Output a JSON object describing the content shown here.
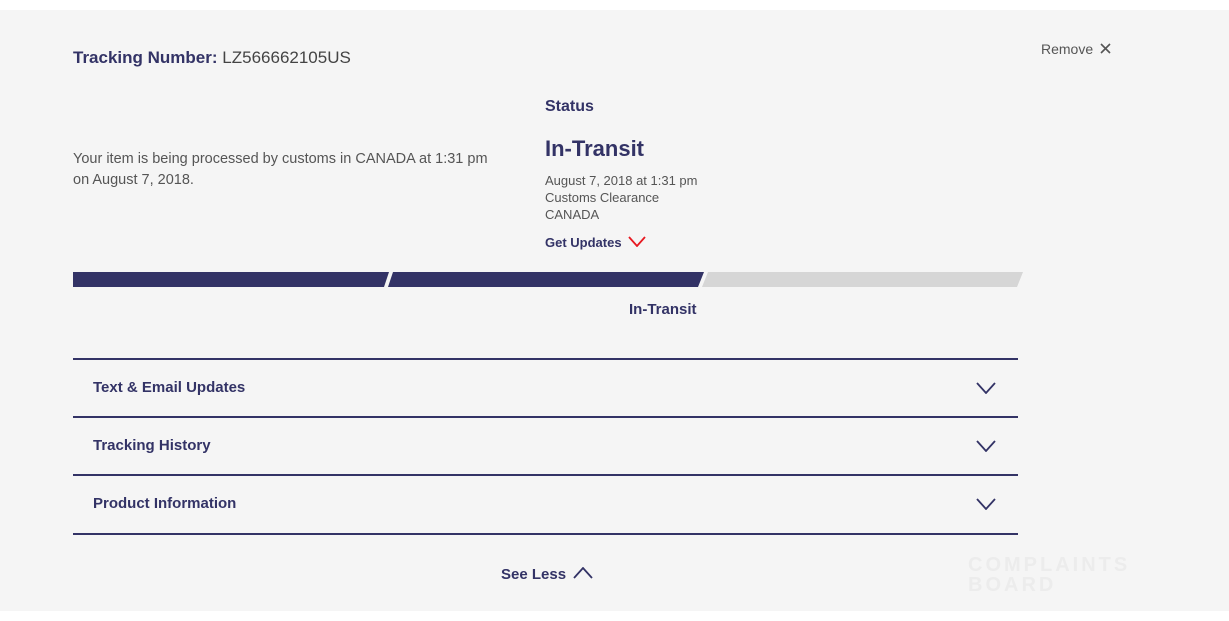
{
  "tracking": {
    "label": "Tracking Number:",
    "number": "LZ566662105US"
  },
  "remove_label": "Remove",
  "message": "Your item is being processed by customs in CANADA at 1:31 pm on August 7, 2018.",
  "status": {
    "heading": "Status",
    "value": "In-Transit",
    "datetime": "August 7, 2018 at 1:31 pm",
    "event": "Customs Clearance",
    "location": "CANADA",
    "get_updates": "Get Updates"
  },
  "progress": {
    "current_step_label": "In-Transit",
    "steps_completed": 2,
    "steps_total": 3
  },
  "accordion": [
    {
      "label": "Text & Email Updates"
    },
    {
      "label": "Tracking History"
    },
    {
      "label": "Product Information"
    }
  ],
  "see_less": "See Less",
  "watermark": "COMPLAINTS BOARD",
  "colors": {
    "brand": "#333366",
    "accent": "#e71921",
    "inactive": "#d6d6d6",
    "background": "#f5f5f5"
  }
}
